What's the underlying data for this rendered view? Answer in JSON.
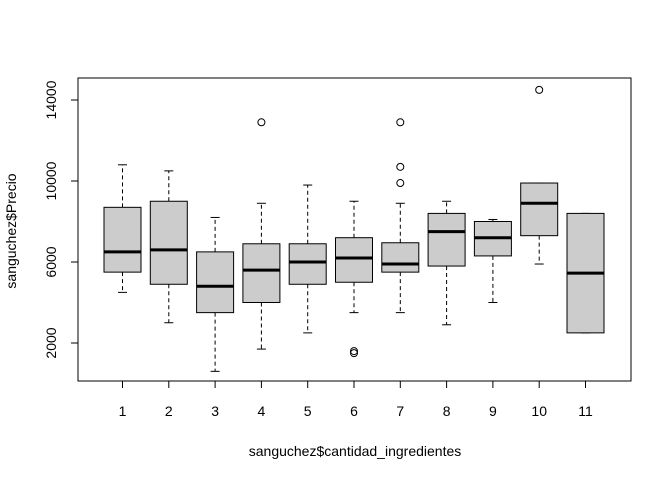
{
  "chart_data": {
    "type": "box",
    "title": "",
    "xlabel": "sanguchez$cantidad_ingredientes",
    "ylabel": "sanguchez$Precio",
    "ylim": [
      0,
      15000
    ],
    "yticks": [
      2000,
      6000,
      10000,
      14000
    ],
    "categories": [
      "1",
      "2",
      "3",
      "4",
      "5",
      "6",
      "7",
      "8",
      "9",
      "10",
      "11"
    ],
    "boxes": [
      {
        "category": "1",
        "whisker_low": 4500,
        "q1": 5500,
        "median": 6500,
        "q3": 8700,
        "whisker_high": 10800,
        "outliers": []
      },
      {
        "category": "2",
        "whisker_low": 3000,
        "q1": 4900,
        "median": 6600,
        "q3": 9000,
        "whisker_high": 10500,
        "outliers": []
      },
      {
        "category": "3",
        "whisker_low": 600,
        "q1": 3500,
        "median": 4800,
        "q3": 6500,
        "whisker_high": 8200,
        "outliers": []
      },
      {
        "category": "4",
        "whisker_low": 1700,
        "q1": 4000,
        "median": 5600,
        "q3": 6900,
        "whisker_high": 8900,
        "outliers": [
          12900
        ]
      },
      {
        "category": "5",
        "whisker_low": 2500,
        "q1": 4900,
        "median": 6000,
        "q3": 6900,
        "whisker_high": 9800,
        "outliers": []
      },
      {
        "category": "6",
        "whisker_low": 3500,
        "q1": 5000,
        "median": 6200,
        "q3": 7200,
        "whisker_high": 9000,
        "outliers": [
          1500,
          1600
        ]
      },
      {
        "category": "7",
        "whisker_low": 3500,
        "q1": 5500,
        "median": 5900,
        "q3": 6950,
        "whisker_high": 8900,
        "outliers": [
          9900,
          10700,
          12900
        ]
      },
      {
        "category": "8",
        "whisker_low": 2900,
        "q1": 5800,
        "median": 7500,
        "q3": 8400,
        "whisker_high": 9000,
        "outliers": []
      },
      {
        "category": "9",
        "whisker_low": 4000,
        "q1": 6300,
        "median": 7200,
        "q3": 8000,
        "whisker_high": 8100,
        "outliers": []
      },
      {
        "category": "10",
        "whisker_low": 5900,
        "q1": 7300,
        "median": 8900,
        "q3": 9900,
        "whisker_high": 9900,
        "outliers": [
          14500
        ]
      },
      {
        "category": "11",
        "whisker_low": 2500,
        "q1": 2500,
        "median": 5450,
        "q3": 8400,
        "whisker_high": 8400,
        "outliers": []
      }
    ],
    "box_fill": "#cccccc",
    "stroke_color": "#000000",
    "grid": false,
    "legend": "none"
  }
}
